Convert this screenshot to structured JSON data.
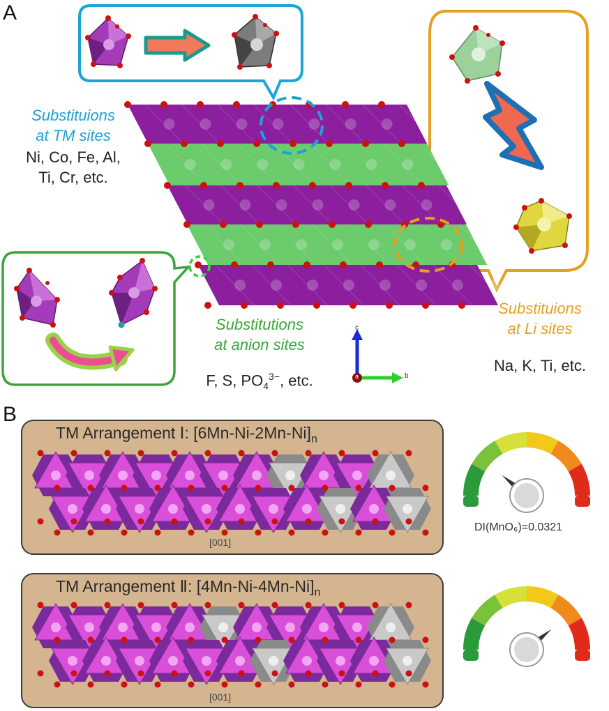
{
  "panel_a_label": "A",
  "panel_b_label": "B",
  "tm_sites": {
    "title_line1": "Substituions",
    "title_line2": "at TM sites",
    "examples_line1": "Ni, Co, Fe, Al,",
    "examples_line2": "Ti, Cr, etc."
  },
  "anion_sites": {
    "title_line1": "Substitutions",
    "title_line2": "at anion sites",
    "examples_prefix": "F, S, PO",
    "examples_sub": "4",
    "examples_sup": "3−",
    "examples_suffix": ", etc."
  },
  "li_sites": {
    "title_line1": "Substituions",
    "title_line2": "at Li sites",
    "examples": "Na, K, Ti, etc."
  },
  "axes": {
    "c": "c",
    "b": "b",
    "a": "a"
  },
  "arrangement_1": {
    "title": "TM Arrangement Ⅰ: [6Mn-Ni-2Mn-Ni]",
    "subscript": "n",
    "direction": "[001]",
    "di_label": "DI(MnO₆)=0.0321",
    "gauge_level": 0.22
  },
  "arrangement_2": {
    "title": "TM Arrangement Ⅱ: [4Mn-Ni-4Mn-Ni]",
    "subscript": "n",
    "direction": "[001]",
    "gauge_level": 0.78
  },
  "colors": {
    "purple": "#8b1f9e",
    "green": "#6ccb6c",
    "blue_accent": "#1ba4d8",
    "green_accent": "#3aa63a",
    "orange_accent": "#e6a020",
    "oxygen": "#cc1111",
    "tan": "#d4b58f"
  }
}
